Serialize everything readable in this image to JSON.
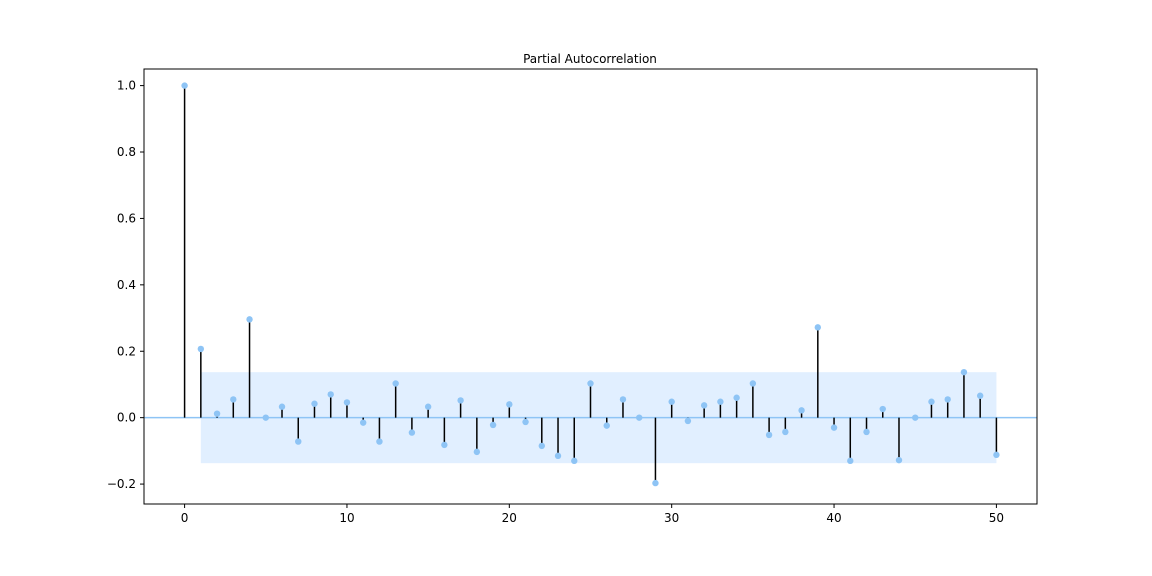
{
  "chart_data": {
    "type": "stem",
    "title": "Partial Autocorrelation",
    "xlabel": "",
    "ylabel": "",
    "xlim": [
      -2.5,
      52.5
    ],
    "ylim": [
      -0.26,
      1.05
    ],
    "x_ticks": [
      0,
      10,
      20,
      30,
      40,
      50
    ],
    "y_ticks": [
      -0.2,
      0.0,
      0.2,
      0.4,
      0.6,
      0.8,
      1.0
    ],
    "x_tick_labels": [
      "0",
      "10",
      "20",
      "30",
      "40",
      "50"
    ],
    "y_tick_labels": [
      "−0.2",
      "0.0",
      "0.2",
      "0.4",
      "0.6",
      "0.8",
      "1.0"
    ],
    "grid": false,
    "confidence_band": {
      "x_start": 1,
      "x_end": 50,
      "upper": 0.137,
      "lower": -0.137
    },
    "lags": [
      0,
      1,
      2,
      3,
      4,
      5,
      6,
      7,
      8,
      9,
      10,
      11,
      12,
      13,
      14,
      15,
      16,
      17,
      18,
      19,
      20,
      21,
      22,
      23,
      24,
      25,
      26,
      27,
      28,
      29,
      30,
      31,
      32,
      33,
      34,
      35,
      36,
      37,
      38,
      39,
      40,
      41,
      42,
      43,
      44,
      45,
      46,
      47,
      48,
      49,
      50
    ],
    "values": [
      1.0,
      0.207,
      0.012,
      0.055,
      0.296,
      0.0,
      0.033,
      -0.072,
      0.042,
      0.07,
      0.046,
      -0.015,
      -0.072,
      0.103,
      -0.045,
      0.033,
      -0.082,
      0.052,
      -0.103,
      -0.022,
      0.04,
      -0.013,
      -0.085,
      -0.115,
      -0.13,
      0.103,
      -0.024,
      0.055,
      0.0,
      -0.197,
      0.048,
      -0.01,
      0.037,
      0.048,
      0.06,
      0.103,
      -0.052,
      -0.043,
      0.022,
      0.272,
      -0.03,
      -0.13,
      -0.043,
      0.026,
      -0.128,
      0.0,
      0.048,
      0.055,
      0.137,
      0.066,
      -0.112
    ],
    "colors": {
      "marker": "#8ec4f5",
      "stem": "#000000",
      "band": "#e1efff",
      "zero_line": "#8ec4f5"
    }
  }
}
